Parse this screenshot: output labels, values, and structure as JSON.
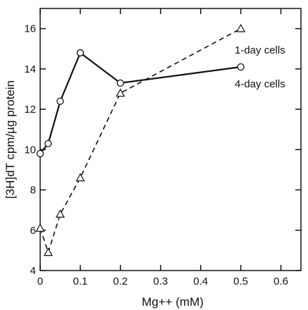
{
  "chart_data": {
    "type": "line",
    "title": "",
    "xlabel": "Mg++ (mM)",
    "ylabel": "[3H]dT cpm/µg protein",
    "xlim": [
      0,
      0.65
    ],
    "ylim": [
      4,
      17
    ],
    "x_ticks": [
      0,
      0.1,
      0.2,
      0.3,
      0.4,
      0.5,
      0.6
    ],
    "x_tick_labels": [
      "0",
      "0.1",
      "0.2",
      "0.3",
      "0.4",
      "0.5",
      "0.6"
    ],
    "y_ticks": [
      4,
      6,
      8,
      10,
      12,
      14,
      16
    ],
    "y_tick_labels": [
      "4",
      "6",
      "8",
      "10",
      "12",
      "14",
      "16"
    ],
    "grid": false,
    "series": [
      {
        "name": "4-day cells",
        "marker": "circle",
        "line_style": "solid",
        "points": [
          {
            "x": 0,
            "y": 9.8
          },
          {
            "x": 0.02,
            "y": 10.3
          },
          {
            "x": 0.05,
            "y": 12.4
          },
          {
            "x": 0.1,
            "y": 14.8
          },
          {
            "x": 0.2,
            "y": 13.3
          },
          {
            "x": 0.5,
            "y": 14.1
          }
        ]
      },
      {
        "name": "1-day cells",
        "marker": "triangle",
        "line_style": "dashed",
        "points": [
          {
            "x": 0,
            "y": 6.1
          },
          {
            "x": 0.02,
            "y": 4.9
          },
          {
            "x": 0.05,
            "y": 6.8
          },
          {
            "x": 0.1,
            "y": 8.6
          },
          {
            "x": 0.2,
            "y": 12.8
          },
          {
            "x": 0.5,
            "y": 16.0
          }
        ]
      }
    ],
    "colors": {
      "ink": "#111111",
      "background": "#ffffff"
    }
  }
}
